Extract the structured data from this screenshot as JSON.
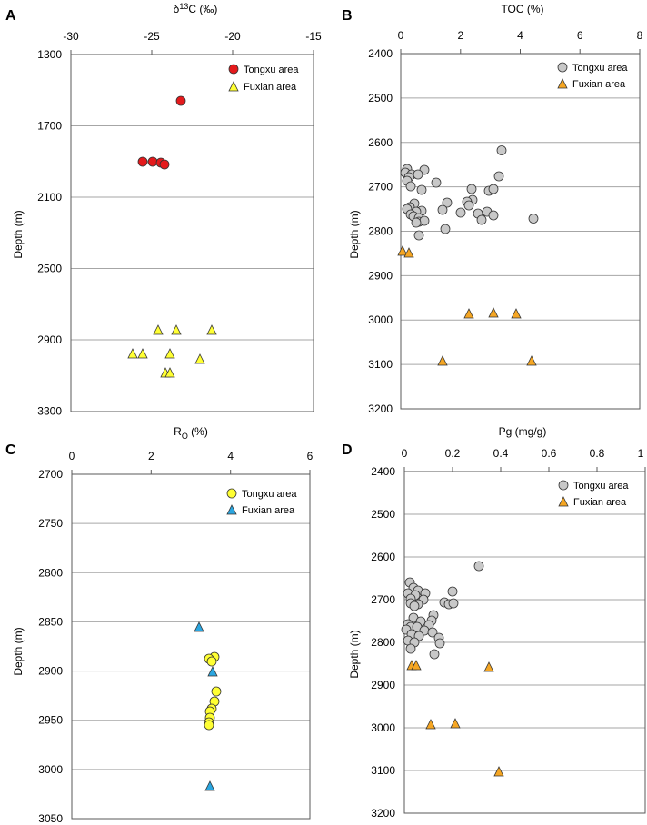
{
  "colors": {
    "red": "#e41a1c",
    "yellow": "#ffff33",
    "orange": "#f5a623",
    "gray": "#c8c8c8",
    "blue": "#2ba6e0",
    "grid": "#a6a6a6",
    "axis": "#595959"
  },
  "chart_data": [
    {
      "id": "A",
      "panel_label": "A",
      "type": "scatter",
      "title": "δ13C (‰)",
      "title_parts": {
        "pre": "δ",
        "sup": "13",
        "post": "C (‰)"
      },
      "xlabel_position": "top",
      "ylabel": "Depth (m)",
      "xlim": [
        -30,
        -15
      ],
      "ylim": [
        1300,
        3300
      ],
      "y_inverted": true,
      "xticks": [
        -30,
        -25,
        -20,
        -15
      ],
      "xtick_labels": [
        "-30",
        "-25",
        "-20",
        "-15"
      ],
      "yticks": [
        1300,
        1700,
        2100,
        2500,
        2900,
        3300
      ],
      "ytick_labels": [
        "1300",
        "1700",
        "2100",
        "2500",
        "2900",
        "3300"
      ],
      "grid": "horizontal",
      "legend_placement": "top-right",
      "series": [
        {
          "name": "Tongxu area",
          "marker": "circle",
          "color": "red",
          "points": [
            [
              -23.2,
              1560
            ],
            [
              -25.6,
              1900
            ],
            [
              -25.0,
              1900
            ],
            [
              -24.5,
              1905
            ],
            [
              -24.3,
              1915
            ]
          ]
        },
        {
          "name": "Fuxian area",
          "marker": "triangle",
          "color": "yellow",
          "points": [
            [
              -24.3,
              2860
            ],
            [
              -23.1,
              2860
            ],
            [
              -20.9,
              2860
            ],
            [
              -26.2,
              2990
            ],
            [
              -25.6,
              2990
            ],
            [
              -23.8,
              2990
            ],
            [
              -21.9,
              3005
            ],
            [
              -24.0,
              3110
            ],
            [
              -23.7,
              3110
            ]
          ]
        }
      ]
    },
    {
      "id": "B",
      "panel_label": "B",
      "type": "scatter",
      "title": "TOC (%)",
      "xlabel_position": "top",
      "ylabel": "Depth (m)",
      "xlim": [
        0,
        8
      ],
      "ylim": [
        2400,
        3200
      ],
      "y_inverted": true,
      "xticks": [
        0,
        2,
        4,
        6,
        8
      ],
      "xtick_labels": [
        "0",
        "2",
        "4",
        "6",
        "8"
      ],
      "yticks": [
        2400,
        2500,
        2600,
        2700,
        2800,
        2900,
        3000,
        3100,
        3200
      ],
      "ytick_labels": [
        "2400",
        "2500",
        "2600",
        "2700",
        "2800",
        "2900",
        "3000",
        "3100",
        "3200"
      ],
      "grid": "horizontal",
      "legend_placement": "top-right",
      "series": [
        {
          "name": "Tongxu area",
          "marker": "circle",
          "color": "gray",
          "points": [
            [
              3.4,
              2620
            ],
            [
              0.2,
              2662
            ],
            [
              0.8,
              2668
            ],
            [
              0.15,
              2675
            ],
            [
              0.4,
              2677
            ],
            [
              0.6,
              2678
            ],
            [
              0.3,
              2680
            ],
            [
              3.3,
              2680
            ],
            [
              0.2,
              2690
            ],
            [
              1.2,
              2693
            ],
            [
              0.35,
              2700
            ],
            [
              2.4,
              2705
            ],
            [
              0.7,
              2708
            ],
            [
              3.1,
              2710
            ],
            [
              3.3,
              2710
            ],
            [
              2.4,
              2730
            ],
            [
              2.2,
              2733
            ],
            [
              0.5,
              2737
            ],
            [
              1.6,
              2738
            ],
            [
              2.3,
              2745
            ],
            [
              0.3,
              2745
            ],
            [
              0.2,
              2750
            ],
            [
              1.4,
              2752
            ],
            [
              0.7,
              2755
            ],
            [
              0.5,
              2755
            ],
            [
              0.3,
              2760
            ],
            [
              3.0,
              2760
            ],
            [
              2.0,
              2762
            ],
            [
              2.6,
              2765
            ],
            [
              3.2,
              2766
            ],
            [
              0.4,
              2768
            ],
            [
              0.6,
              2770
            ],
            [
              4.5,
              2775
            ],
            [
              2.7,
              2778
            ],
            [
              0.6,
              2780
            ],
            [
              0.8,
              2780
            ],
            [
              0.5,
              2782
            ],
            [
              1.5,
              2795
            ],
            [
              0.6,
              2810
            ]
          ]
        },
        {
          "name": "Fuxian area",
          "marker": "triangle",
          "color": "orange",
          "points": [
            [
              0.05,
              2848
            ],
            [
              0.25,
              2850
            ],
            [
              2.3,
              2987
            ],
            [
              3.1,
              2985
            ],
            [
              3.9,
              2987
            ],
            [
              1.4,
              3092
            ],
            [
              4.4,
              3093
            ]
          ]
        }
      ]
    },
    {
      "id": "C",
      "panel_label": "C",
      "type": "scatter",
      "title": "RO (%)",
      "title_parts": {
        "pre": "R",
        "sub": "O",
        "post": " (%)"
      },
      "xlabel_position": "top",
      "ylabel": "Depth (m)",
      "xlim": [
        0,
        6
      ],
      "ylim": [
        2700,
        3050
      ],
      "y_inverted": true,
      "xticks": [
        0,
        2,
        4,
        6
      ],
      "xtick_labels": [
        "0",
        "2",
        "4",
        "6"
      ],
      "yticks": [
        2700,
        2750,
        2800,
        2850,
        2900,
        2950,
        3000,
        3050
      ],
      "ytick_labels": [
        "2700",
        "2750",
        "2800",
        "2850",
        "2900",
        "2950",
        "3000",
        "3050"
      ],
      "grid": "horizontal",
      "legend_placement": "top-right",
      "series": [
        {
          "name": "Tongxu area",
          "marker": "circle",
          "color": "yellow",
          "points": [
            [
              3.6,
              2887
            ],
            [
              3.45,
              2890
            ],
            [
              3.55,
              2892
            ],
            [
              3.65,
              2922
            ],
            [
              3.6,
              2932
            ],
            [
              3.55,
              2940
            ],
            [
              3.5,
              2943
            ],
            [
              3.5,
              2950
            ],
            [
              3.45,
              2955
            ],
            [
              3.45,
              2958
            ]
          ]
        },
        {
          "name": "Fuxian area",
          "marker": "triangle",
          "color": "blue",
          "points": [
            [
              3.2,
              2858
            ],
            [
              3.55,
              2902
            ],
            [
              3.5,
              3017
            ]
          ]
        }
      ]
    },
    {
      "id": "D",
      "panel_label": "D",
      "type": "scatter",
      "title": "Pg (mg/g)",
      "xlabel_position": "top",
      "ylabel": "Depth (m)",
      "xlim": [
        0,
        1
      ],
      "ylim": [
        2400,
        3200
      ],
      "y_inverted": true,
      "xticks": [
        0,
        0.2,
        0.4,
        0.6,
        0.8,
        1
      ],
      "xtick_labels": [
        "0",
        "0.2",
        "0.4",
        "0.6",
        "0.8",
        "1"
      ],
      "yticks": [
        2400,
        2500,
        2600,
        2700,
        2800,
        2900,
        3000,
        3100,
        3200
      ],
      "ytick_labels": [
        "2400",
        "2500",
        "2600",
        "2700",
        "2800",
        "2900",
        "3000",
        "3100",
        "3200"
      ],
      "grid": "horizontal",
      "legend_placement": "top-right",
      "series": [
        {
          "name": "Tongxu area",
          "marker": "circle",
          "color": "gray",
          "points": [
            [
              0.3,
              2620
            ],
            [
              0.01,
              2660
            ],
            [
              0.03,
              2668
            ],
            [
              0.06,
              2672
            ],
            [
              0.0,
              2678
            ],
            [
              0.1,
              2678
            ],
            [
              0.04,
              2680
            ],
            [
              0.02,
              2685
            ],
            [
              0.08,
              2690
            ],
            [
              0.2,
              2680
            ],
            [
              0.05,
              2695
            ],
            [
              0.02,
              2700
            ],
            [
              0.15,
              2705
            ],
            [
              0.17,
              2708
            ],
            [
              0.19,
              2708
            ],
            [
              0.03,
              2710
            ],
            [
              0.12,
              2730
            ],
            [
              0.11,
              2740
            ],
            [
              0.04,
              2740
            ],
            [
              0.07,
              2742
            ],
            [
              0.01,
              2750
            ],
            [
              0.1,
              2752
            ],
            [
              0.02,
              2755
            ],
            [
              0.05,
              2755
            ],
            [
              0.0,
              2760
            ],
            [
              0.08,
              2762
            ],
            [
              0.12,
              2765
            ],
            [
              0.03,
              2768
            ],
            [
              0.06,
              2772
            ],
            [
              0.14,
              2775
            ],
            [
              0.01,
              2780
            ],
            [
              0.04,
              2783
            ],
            [
              0.14,
              2785
            ],
            [
              0.03,
              2798
            ],
            [
              0.12,
              2810
            ]
          ]
        },
        {
          "name": "Fuxian area",
          "marker": "triangle",
          "color": "orange",
          "points": [
            [
              0.03,
              2850
            ],
            [
              0.05,
              2850
            ],
            [
              0.35,
              2855
            ],
            [
              0.11,
              2990
            ],
            [
              0.21,
              2987
            ],
            [
              0.39,
              3097
            ]
          ]
        }
      ]
    }
  ]
}
